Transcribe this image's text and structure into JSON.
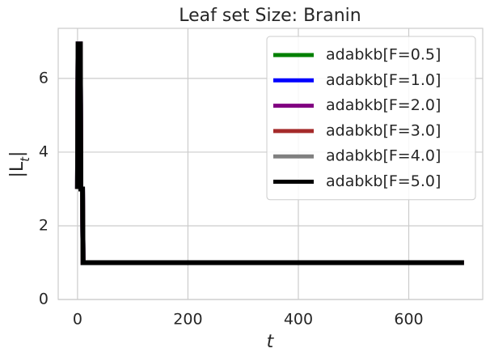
{
  "chart_data": {
    "type": "line",
    "title": "Leaf set Size: Branin",
    "xlabel": "t",
    "ylabel": "|L_t|",
    "x": [
      0,
      1,
      2,
      3,
      4,
      5,
      6,
      7,
      8,
      9,
      10,
      700
    ],
    "series": [
      {
        "name": "adabkb[F=0.5]",
        "color": "#008000",
        "values": [
          3,
          7,
          3,
          7,
          3,
          7,
          3,
          3,
          3,
          3,
          1,
          1
        ]
      },
      {
        "name": "adabkb[F=1.0]",
        "color": "#0000ff",
        "values": [
          3,
          7,
          3,
          7,
          3,
          7,
          3,
          3,
          3,
          3,
          1,
          1
        ]
      },
      {
        "name": "adabkb[F=2.0]",
        "color": "#800080",
        "values": [
          3,
          7,
          3,
          7,
          3,
          7,
          3,
          3,
          3,
          3,
          1,
          1
        ]
      },
      {
        "name": "adabkb[F=3.0]",
        "color": "#a52a2a",
        "values": [
          3,
          7,
          3,
          7,
          3,
          7,
          3,
          3,
          3,
          3,
          1,
          1
        ]
      },
      {
        "name": "adabkb[F=4.0]",
        "color": "#808080",
        "values": [
          3,
          7,
          3,
          7,
          3,
          7,
          3,
          3,
          3,
          3,
          1,
          1
        ]
      },
      {
        "name": "adabkb[F=5.0]",
        "color": "#000000",
        "values": [
          3,
          7,
          3,
          7,
          3,
          7,
          3,
          3,
          3,
          3,
          1,
          1
        ]
      }
    ],
    "xlim": [
      -35,
      734
    ],
    "ylim": [
      0,
      7.36
    ],
    "xticks": [
      0,
      200,
      400,
      600
    ],
    "yticks": [
      0,
      2,
      4,
      6
    ],
    "grid": true,
    "legend": "upper right"
  }
}
